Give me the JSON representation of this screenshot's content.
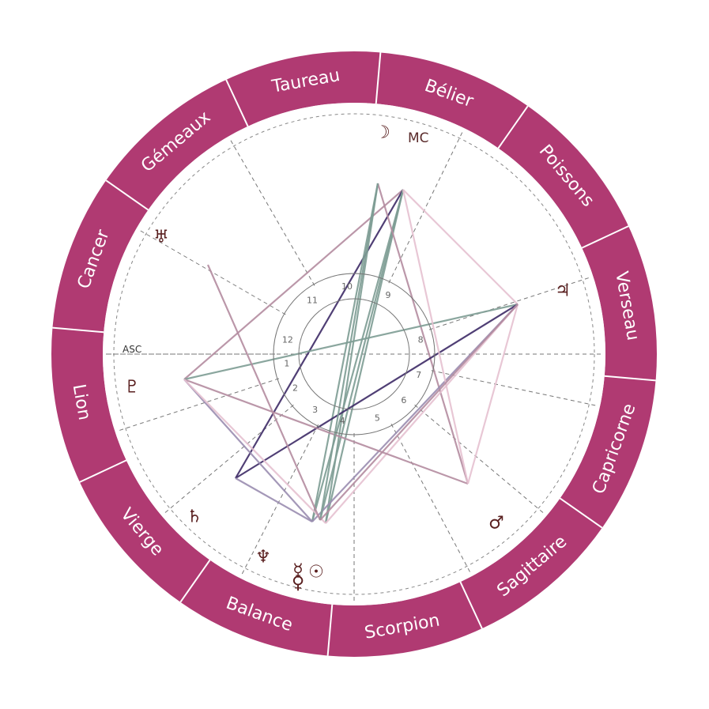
{
  "colors": {
    "ring": "#b03a72",
    "ring_divider": "#ffffff",
    "house_line": "#777777",
    "inner_circle": "#777777",
    "glyph": "#5a2020"
  },
  "signs": [
    {
      "label": "Taureau"
    },
    {
      "label": "Bélier"
    },
    {
      "label": "Poissons"
    },
    {
      "label": "Verseau"
    },
    {
      "label": "Capricorne"
    },
    {
      "label": "Sagittaire"
    },
    {
      "label": "Scorpion"
    },
    {
      "label": "Balance"
    },
    {
      "label": "Vierge"
    },
    {
      "label": "Lion"
    },
    {
      "label": "Cancer"
    },
    {
      "label": "Gémeaux"
    }
  ],
  "houses": [
    "1",
    "2",
    "3",
    "4",
    "5",
    "6",
    "7",
    "8",
    "9",
    "10",
    "11",
    "12"
  ],
  "axes": {
    "asc": "ASC",
    "mc": "MC"
  },
  "planets": [
    {
      "name": "moon",
      "glyph": "☽"
    },
    {
      "name": "uranus",
      "glyph": "♅"
    },
    {
      "name": "jupiter",
      "glyph": "♃"
    },
    {
      "name": "pluto",
      "glyph": "♇"
    },
    {
      "name": "saturn",
      "glyph": "♄"
    },
    {
      "name": "mars",
      "glyph": "♂"
    },
    {
      "name": "neptune",
      "glyph": "♆"
    },
    {
      "name": "mercury",
      "glyph": "☿"
    },
    {
      "name": "venus",
      "glyph": "♀"
    },
    {
      "name": "sun",
      "glyph": "☉"
    }
  ],
  "aspect_colors": [
    "#7d9c93",
    "#3d2a66",
    "#b48ca0",
    "#e6c1d0",
    "#9a8db0"
  ]
}
